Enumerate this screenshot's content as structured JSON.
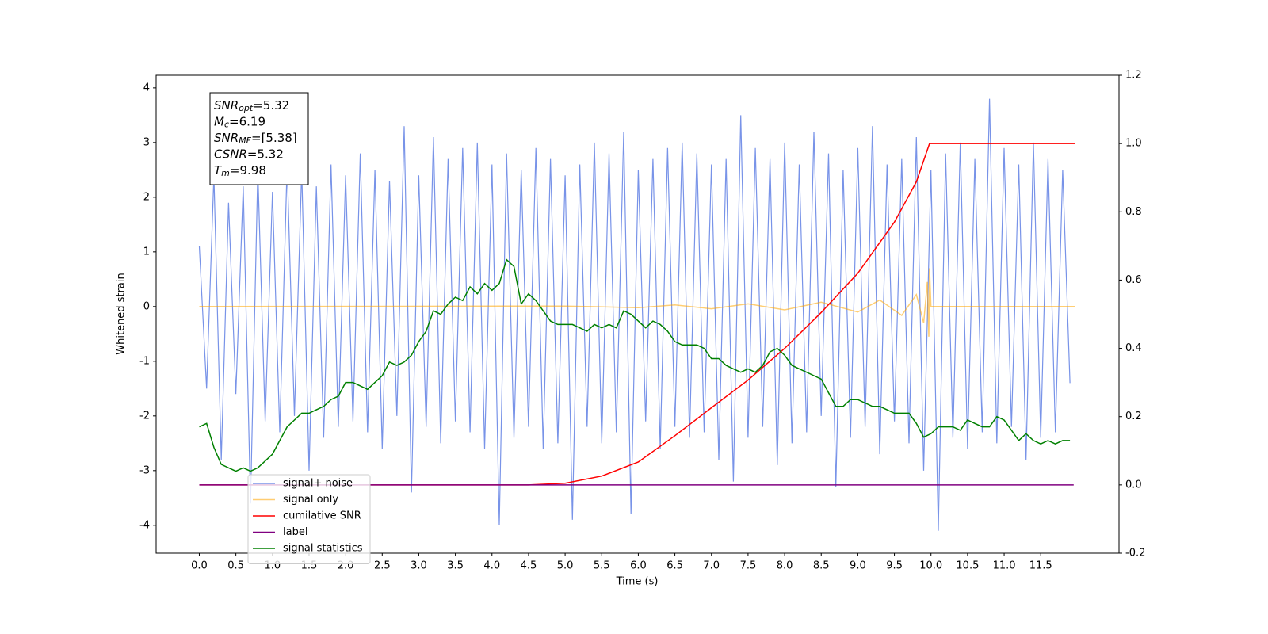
{
  "chart_data": {
    "type": "line",
    "xlabel": "Time (s)",
    "ylabel": "Whitened strain",
    "xlim": [
      -0.59,
      12.57
    ],
    "ylim": [
      -4.51,
      4.23
    ],
    "y2lim": [
      -0.2,
      1.2
    ],
    "xticks": [
      {
        "value": 0,
        "label": "0.0"
      },
      0.5,
      {
        "value": 1,
        "label": "1.0"
      },
      1.5,
      {
        "value": 2,
        "label": "2.0"
      },
      2.5,
      {
        "value": 3,
        "label": "3.0"
      },
      3.5,
      {
        "value": 4,
        "label": "4.0"
      },
      4.5,
      {
        "value": 5,
        "label": "5.0"
      },
      5.5,
      {
        "value": 6,
        "label": "6.0"
      },
      6.5,
      {
        "value": 7,
        "label": "7.0"
      },
      7.5,
      {
        "value": 8,
        "label": "8.0"
      },
      8.5,
      {
        "value": 9,
        "label": "9.0"
      },
      9.5,
      {
        "value": 10,
        "label": "10.0"
      },
      10.5,
      {
        "value": 11,
        "label": "11.0"
      },
      11.5
    ],
    "yticks": [
      -4,
      -3,
      -2,
      -1,
      0,
      1,
      2,
      3,
      4
    ],
    "y2ticks": [
      -0.2,
      {
        "value": 0,
        "label": "0.0"
      },
      0.2,
      0.4,
      0.6,
      0.8,
      {
        "value": 1,
        "label": "1.0"
      },
      1.2
    ],
    "legend": "lower left",
    "annotation_lines": [
      {
        "symbol": "SNR",
        "subscript": "opt",
        "value": "=5.32"
      },
      {
        "symbol": "M",
        "subscript": "c",
        "value": "=6.19"
      },
      {
        "symbol": "SNR",
        "subscript": "MF",
        "value": "=[5.38]"
      },
      {
        "symbol": "CSNR",
        "value": "=5.32"
      },
      {
        "symbol": "T",
        "subscript": "m",
        "value": "=9.98"
      }
    ],
    "series": [
      {
        "name": "signal+ noise",
        "color": "#7893e8",
        "x": [
          0,
          0.1,
          0.2,
          0.3,
          0.4,
          0.5,
          0.6,
          0.7,
          0.8,
          0.9,
          1,
          1.1,
          1.2,
          1.3,
          1.4,
          1.5,
          1.6,
          1.7,
          1.8,
          1.9,
          2,
          2.1,
          2.2,
          2.3,
          2.4,
          2.5,
          2.6,
          2.7,
          2.8,
          2.9,
          3,
          3.1,
          3.2,
          3.3,
          3.4,
          3.5,
          3.6,
          3.7,
          3.8,
          3.9,
          4,
          4.1,
          4.2,
          4.3,
          4.4,
          4.5,
          4.6,
          4.7,
          4.8,
          4.9,
          5,
          5.1,
          5.2,
          5.3,
          5.4,
          5.5,
          5.6,
          5.7,
          5.8,
          5.9,
          6,
          6.1,
          6.2,
          6.3,
          6.4,
          6.5,
          6.6,
          6.7,
          6.8,
          6.9,
          7,
          7.1,
          7.2,
          7.3,
          7.4,
          7.5,
          7.6,
          7.7,
          7.8,
          7.9,
          8,
          8.1,
          8.2,
          8.3,
          8.4,
          8.5,
          8.6,
          8.7,
          8.8,
          8.9,
          9,
          9.1,
          9.2,
          9.3,
          9.4,
          9.5,
          9.6,
          9.7,
          9.8,
          9.9,
          10,
          10.1,
          10.2,
          10.3,
          10.4,
          10.5,
          10.6,
          10.7,
          10.8,
          10.9,
          11,
          11.1,
          11.2,
          11.3,
          11.4,
          11.5,
          11.6,
          11.7,
          11.8,
          11.9
        ],
        "values": [
          1.1,
          -1.5,
          2.4,
          -2.8,
          1.9,
          -1.6,
          2.2,
          -3.6,
          2.5,
          -2.1,
          2.1,
          -2.3,
          2.6,
          -2.0,
          2.5,
          -3.0,
          2.2,
          -2.4,
          2.6,
          -2.2,
          2.4,
          -2.1,
          2.8,
          -2.3,
          2.5,
          -2.6,
          2.3,
          -2.0,
          3.3,
          -3.4,
          2.4,
          -2.2,
          3.1,
          -2.5,
          2.7,
          -2.1,
          2.9,
          -2.3,
          3.0,
          -2.6,
          2.6,
          -4.0,
          2.8,
          -2.4,
          2.5,
          -2.2,
          2.9,
          -2.6,
          2.7,
          -2.5,
          2.4,
          -3.9,
          2.6,
          -2.2,
          3.0,
          -2.5,
          2.8,
          -2.3,
          3.2,
          -3.8,
          2.5,
          -2.1,
          2.7,
          -2.6,
          2.9,
          -2.2,
          3.0,
          -2.4,
          2.8,
          -2.3,
          2.6,
          -2.8,
          2.7,
          -3.2,
          3.5,
          -2.4,
          2.9,
          -2.2,
          2.7,
          -2.9,
          3.0,
          -2.5,
          2.6,
          -2.3,
          3.2,
          -2.0,
          2.8,
          -3.3,
          2.5,
          -2.4,
          2.9,
          -2.2,
          3.3,
          -2.7,
          2.6,
          -2.1,
          2.7,
          -2.5,
          3.1,
          -3.0,
          2.5,
          -4.1,
          2.8,
          -2.4,
          3.0,
          -2.6,
          2.7,
          -2.3,
          3.8,
          -2.5,
          2.9,
          -2.2,
          2.6,
          -2.8,
          3.0,
          -2.4,
          2.7,
          -2.3,
          2.5,
          -1.4
        ]
      },
      {
        "name": "signal only",
        "color": "#ffa500",
        "x": [
          0,
          5.0,
          6.0,
          6.5,
          7.0,
          7.5,
          8.0,
          8.5,
          9.0,
          9.3,
          9.6,
          9.8,
          9.9,
          9.95,
          9.97,
          9.98,
          10.0,
          11.97
        ],
        "values": [
          0,
          0.01,
          -0.02,
          0.03,
          -0.04,
          0.05,
          -0.06,
          0.08,
          -0.1,
          0.12,
          -0.16,
          0.22,
          -0.3,
          0.45,
          -0.55,
          0.7,
          0,
          0
        ]
      },
      {
        "name": "cumilative SNR",
        "color": "#ff0000",
        "axis": "y2",
        "x": [
          0,
          4.5,
          5.0,
          5.5,
          6.0,
          6.5,
          7.0,
          7.5,
          8.0,
          8.5,
          9.0,
          9.5,
          9.8,
          9.98,
          11.97
        ],
        "values": [
          0,
          0,
          0.005,
          0.026,
          0.067,
          0.144,
          0.226,
          0.307,
          0.4,
          0.505,
          0.62,
          0.77,
          0.888,
          1.0,
          1.0
        ]
      },
      {
        "name": "label",
        "color": "#800080",
        "axis": "y2",
        "x": [
          0,
          11.95
        ],
        "values": [
          0,
          0
        ]
      },
      {
        "name": "signal statistics",
        "color": "#008000",
        "axis": "y2",
        "x": [
          0,
          0.1,
          0.2,
          0.3,
          0.4,
          0.5,
          0.6,
          0.7,
          0.8,
          0.9,
          1,
          1.1,
          1.2,
          1.3,
          1.4,
          1.5,
          1.6,
          1.7,
          1.8,
          1.9,
          2,
          2.1,
          2.2,
          2.3,
          2.4,
          2.5,
          2.6,
          2.7,
          2.8,
          2.9,
          3,
          3.1,
          3.2,
          3.3,
          3.4,
          3.5,
          3.6,
          3.7,
          3.8,
          3.9,
          4,
          4.1,
          4.2,
          4.3,
          4.4,
          4.5,
          4.6,
          4.7,
          4.8,
          4.9,
          5,
          5.1,
          5.2,
          5.3,
          5.4,
          5.5,
          5.6,
          5.7,
          5.8,
          5.9,
          6,
          6.1,
          6.2,
          6.3,
          6.4,
          6.5,
          6.6,
          6.7,
          6.8,
          6.9,
          7,
          7.1,
          7.2,
          7.3,
          7.4,
          7.5,
          7.6,
          7.7,
          7.8,
          7.9,
          8,
          8.1,
          8.2,
          8.3,
          8.4,
          8.5,
          8.6,
          8.7,
          8.8,
          8.9,
          9,
          9.1,
          9.2,
          9.3,
          9.4,
          9.5,
          9.6,
          9.7,
          9.8,
          9.9,
          10,
          10.1,
          10.2,
          10.3,
          10.4,
          10.5,
          10.6,
          10.7,
          10.8,
          10.9,
          11,
          11.1,
          11.2,
          11.3,
          11.4,
          11.5,
          11.6,
          11.7,
          11.8,
          11.9
        ],
        "values": [
          0.17,
          0.18,
          0.11,
          0.06,
          0.05,
          0.04,
          0.05,
          0.04,
          0.05,
          0.07,
          0.09,
          0.13,
          0.17,
          0.19,
          0.21,
          0.21,
          0.22,
          0.23,
          0.25,
          0.26,
          0.3,
          0.3,
          0.29,
          0.28,
          0.3,
          0.32,
          0.36,
          0.35,
          0.36,
          0.38,
          0.42,
          0.45,
          0.51,
          0.5,
          0.53,
          0.55,
          0.54,
          0.58,
          0.56,
          0.59,
          0.57,
          0.59,
          0.66,
          0.64,
          0.53,
          0.56,
          0.54,
          0.51,
          0.48,
          0.47,
          0.47,
          0.47,
          0.46,
          0.45,
          0.47,
          0.46,
          0.47,
          0.46,
          0.51,
          0.5,
          0.48,
          0.46,
          0.48,
          0.47,
          0.45,
          0.42,
          0.41,
          0.41,
          0.41,
          0.4,
          0.37,
          0.37,
          0.35,
          0.34,
          0.33,
          0.34,
          0.33,
          0.35,
          0.39,
          0.4,
          0.38,
          0.35,
          0.34,
          0.33,
          0.32,
          0.31,
          0.27,
          0.23,
          0.23,
          0.25,
          0.25,
          0.24,
          0.23,
          0.23,
          0.22,
          0.21,
          0.21,
          0.21,
          0.18,
          0.14,
          0.15,
          0.17,
          0.17,
          0.17,
          0.16,
          0.19,
          0.18,
          0.17,
          0.17,
          0.2,
          0.19,
          0.16,
          0.13,
          0.15,
          0.13,
          0.12,
          0.13,
          0.12,
          0.13,
          0.13
        ]
      }
    ]
  }
}
